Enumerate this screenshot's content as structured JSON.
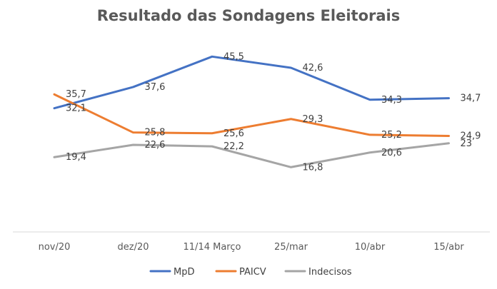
{
  "chart_data": {
    "type": "line",
    "title": "Resultado das Sondagens Eleitorais",
    "categories": [
      "nov/20",
      "dez/20",
      "11/14 Março",
      "25/mar",
      "10/abr",
      "15/abr"
    ],
    "series": [
      {
        "name": "MpD",
        "color": "#4472C4",
        "values": [
          32.1,
          37.6,
          45.5,
          42.6,
          34.3,
          34.7
        ],
        "labels": [
          "32,1",
          "37,6",
          "45,5",
          "42,6",
          "34,3",
          "34,7"
        ]
      },
      {
        "name": "PAICV",
        "color": "#ED7D31",
        "values": [
          35.7,
          25.8,
          25.6,
          29.3,
          25.2,
          24.9
        ],
        "labels": [
          "35,7",
          "25,8",
          "25,6",
          "29,3",
          "25,2",
          "24,9"
        ]
      },
      {
        "name": "Indecisos",
        "color": "#A5A5A5",
        "values": [
          19.4,
          22.6,
          22.2,
          16.8,
          20.6,
          23
        ],
        "labels": [
          "19,4",
          "22,6",
          "22,2",
          "16,8",
          "20,6",
          "23"
        ]
      }
    ],
    "legend_position": "bottom",
    "grid": false
  }
}
